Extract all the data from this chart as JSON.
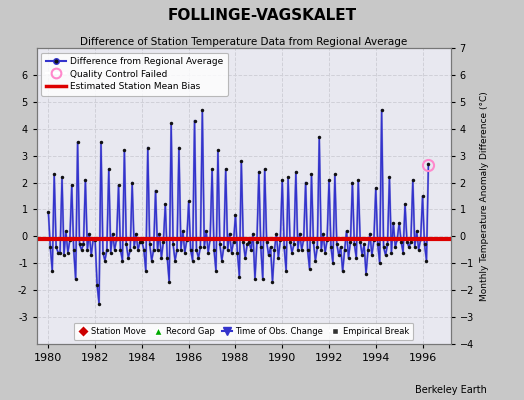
{
  "title": "FOLLINGE-VAGSKALET",
  "subtitle": "Difference of Station Temperature Data from Regional Average",
  "ylabel_right": "Monthly Temperature Anomaly Difference (°C)",
  "bias": -0.1,
  "xlim": [
    1979.5,
    1997.2
  ],
  "ylim": [
    -4,
    7
  ],
  "yticks_left": [
    -3,
    -2,
    -1,
    0,
    1,
    2,
    3,
    4,
    5,
    6
  ],
  "yticks_right": [
    -4,
    -3,
    -2,
    -1,
    0,
    1,
    2,
    3,
    4,
    5,
    6,
    7
  ],
  "xticks": [
    1980,
    1982,
    1984,
    1986,
    1988,
    1990,
    1992,
    1994,
    1996
  ],
  "fig_bg_color": "#c8c8c8",
  "plot_bg_color": "#e8e8f0",
  "grid_color": "#d0d0d8",
  "line_color": "#3333cc",
  "line_color_light": "#9999dd",
  "marker_color": "#111111",
  "bias_color": "#dd0000",
  "qc_fail_x": [
    1996.25
  ],
  "qc_fail_y": [
    2.65
  ],
  "footnote": "Berkeley Earth",
  "data": {
    "x": [
      1980.0,
      1980.083,
      1980.167,
      1980.25,
      1980.333,
      1980.417,
      1980.5,
      1980.583,
      1980.667,
      1980.75,
      1980.833,
      1980.917,
      1981.0,
      1981.083,
      1981.167,
      1981.25,
      1981.333,
      1981.417,
      1981.5,
      1981.583,
      1981.667,
      1981.75,
      1981.833,
      1981.917,
      1982.0,
      1982.083,
      1982.167,
      1982.25,
      1982.333,
      1982.417,
      1982.5,
      1982.583,
      1982.667,
      1982.75,
      1982.833,
      1982.917,
      1983.0,
      1983.083,
      1983.167,
      1983.25,
      1983.333,
      1983.417,
      1983.5,
      1983.583,
      1983.667,
      1983.75,
      1983.833,
      1983.917,
      1984.0,
      1984.083,
      1984.167,
      1984.25,
      1984.333,
      1984.417,
      1984.5,
      1984.583,
      1984.667,
      1984.75,
      1984.833,
      1984.917,
      1985.0,
      1985.083,
      1985.167,
      1985.25,
      1985.333,
      1985.417,
      1985.5,
      1985.583,
      1985.667,
      1985.75,
      1985.833,
      1985.917,
      1986.0,
      1986.083,
      1986.167,
      1986.25,
      1986.333,
      1986.417,
      1986.5,
      1986.583,
      1986.667,
      1986.75,
      1986.833,
      1986.917,
      1987.0,
      1987.083,
      1987.167,
      1987.25,
      1987.333,
      1987.417,
      1987.5,
      1987.583,
      1987.667,
      1987.75,
      1987.833,
      1987.917,
      1988.0,
      1988.083,
      1988.167,
      1988.25,
      1988.333,
      1988.417,
      1988.5,
      1988.583,
      1988.667,
      1988.75,
      1988.833,
      1988.917,
      1989.0,
      1989.083,
      1989.167,
      1989.25,
      1989.333,
      1989.417,
      1989.5,
      1989.583,
      1989.667,
      1989.75,
      1989.833,
      1989.917,
      1990.0,
      1990.083,
      1990.167,
      1990.25,
      1990.333,
      1990.417,
      1990.5,
      1990.583,
      1990.667,
      1990.75,
      1990.833,
      1990.917,
      1991.0,
      1991.083,
      1991.167,
      1991.25,
      1991.333,
      1991.417,
      1991.5,
      1991.583,
      1991.667,
      1991.75,
      1991.833,
      1991.917,
      1992.0,
      1992.083,
      1992.167,
      1992.25,
      1992.333,
      1992.417,
      1992.5,
      1992.583,
      1992.667,
      1992.75,
      1992.833,
      1992.917,
      1993.0,
      1993.083,
      1993.167,
      1993.25,
      1993.333,
      1993.417,
      1993.5,
      1993.583,
      1993.667,
      1993.75,
      1993.833,
      1993.917,
      1994.0,
      1994.083,
      1994.167,
      1994.25,
      1994.333,
      1994.417,
      1994.5,
      1994.583,
      1994.667,
      1994.75,
      1994.833,
      1994.917,
      1995.0,
      1995.083,
      1995.167,
      1995.25,
      1995.333,
      1995.417,
      1995.5,
      1995.583,
      1995.667,
      1995.75,
      1995.833,
      1995.917,
      1996.0,
      1996.083,
      1996.167,
      1996.25
    ],
    "y": [
      0.9,
      -0.4,
      -1.3,
      2.3,
      -0.4,
      -0.6,
      -0.6,
      2.2,
      -0.7,
      0.2,
      -0.6,
      -0.15,
      1.9,
      -0.5,
      -1.6,
      3.5,
      -0.3,
      -0.5,
      -0.3,
      2.1,
      -0.5,
      0.1,
      -0.7,
      -0.1,
      -0.15,
      -1.8,
      -2.5,
      3.5,
      -0.6,
      -0.9,
      -0.5,
      2.5,
      -0.6,
      0.1,
      -0.5,
      -0.1,
      1.9,
      -0.5,
      -0.9,
      3.2,
      -0.3,
      -0.8,
      -0.5,
      2.0,
      -0.4,
      0.1,
      -0.5,
      -0.2,
      -0.2,
      -0.5,
      -1.3,
      3.3,
      -0.3,
      -0.9,
      -0.5,
      1.7,
      -0.5,
      0.1,
      -0.8,
      -0.2,
      1.2,
      -0.8,
      -1.7,
      4.2,
      -0.3,
      -0.9,
      -0.5,
      3.3,
      -0.5,
      0.2,
      -0.6,
      -0.15,
      1.3,
      -0.5,
      -0.9,
      4.3,
      -0.5,
      -0.8,
      -0.4,
      4.7,
      -0.4,
      0.2,
      -0.6,
      -0.1,
      2.5,
      -0.5,
      -1.3,
      3.2,
      -0.3,
      -0.9,
      -0.4,
      2.5,
      -0.5,
      0.1,
      -0.6,
      -0.2,
      0.8,
      -0.6,
      -1.5,
      2.8,
      -0.2,
      -0.8,
      -0.3,
      -0.2,
      -0.5,
      0.1,
      -1.6,
      -0.2,
      2.4,
      -0.4,
      -1.6,
      2.5,
      -0.2,
      -0.7,
      -0.4,
      -1.7,
      -0.5,
      0.1,
      -0.8,
      -0.15,
      2.1,
      -0.4,
      -1.3,
      2.2,
      -0.2,
      -0.6,
      -0.3,
      2.4,
      -0.5,
      0.1,
      -0.5,
      -0.1,
      2.0,
      -0.5,
      -1.2,
      2.3,
      -0.2,
      -0.9,
      -0.4,
      3.7,
      -0.5,
      0.1,
      -0.6,
      -0.15,
      2.1,
      -0.4,
      -1.0,
      2.3,
      -0.3,
      -0.7,
      -0.4,
      -1.3,
      -0.5,
      0.2,
      -0.8,
      -0.2,
      2.0,
      -0.3,
      -0.8,
      2.1,
      -0.2,
      -0.7,
      -0.3,
      -1.4,
      -0.5,
      0.1,
      -0.7,
      -0.15,
      1.8,
      -0.3,
      -1.0,
      4.7,
      -0.4,
      -0.7,
      -0.3,
      2.2,
      -0.6,
      0.5,
      -0.4,
      -0.1,
      0.5,
      -0.2,
      -0.6,
      1.2,
      -0.2,
      -0.4,
      -0.2,
      2.1,
      -0.4,
      0.2,
      -0.5,
      -0.1,
      1.5,
      -0.3,
      -0.9,
      2.7
    ]
  }
}
